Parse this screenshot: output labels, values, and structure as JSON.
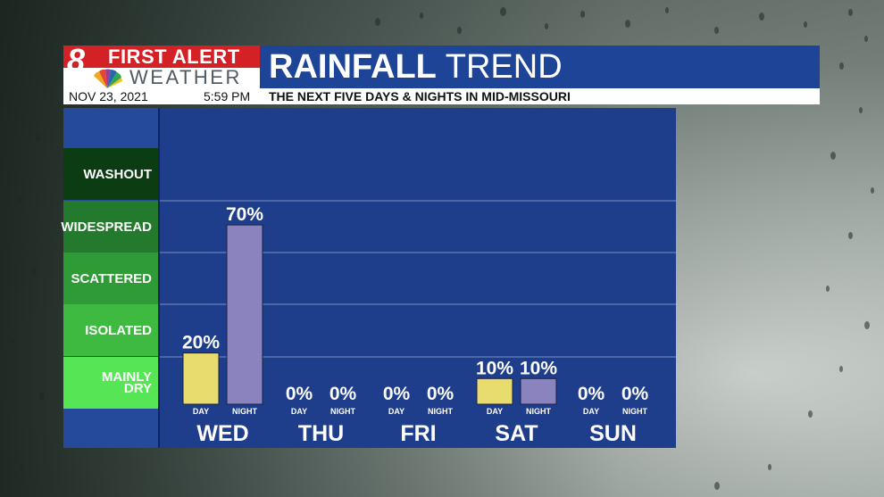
{
  "logo": {
    "line1": "FIRST ALERT",
    "line2": "WEATHER",
    "numeral": "8"
  },
  "header": {
    "title_bold": "RAINFALL",
    "title_light": "TREND",
    "date": "NOV 23, 2021",
    "time": "5:59 PM",
    "description": "THE NEXT FIVE DAYS & NIGHTS IN MID-MISSOURI"
  },
  "legend": {
    "levels": [
      {
        "label": "WASHOUT",
        "color": "#0c3d12"
      },
      {
        "label": "WIDESPREAD",
        "color": "#247a2c"
      },
      {
        "label": "SCATTERED",
        "color": "#2f9b36"
      },
      {
        "label": "ISOLATED",
        "color": "#3eba41"
      },
      {
        "label": "MAINLY\nDRY",
        "color": "#56e655"
      }
    ]
  },
  "colors": {
    "day_bar": "#e9dc6e",
    "night_bar": "#8a83bd",
    "panel": "#1e3d8a",
    "gridline": "#6a80b8"
  },
  "chart_data": {
    "type": "bar",
    "title": "RAINFALL TREND",
    "categories": [
      "WED",
      "THU",
      "FRI",
      "SAT",
      "SUN"
    ],
    "sub_labels": [
      "DAY",
      "NIGHT"
    ],
    "series": [
      {
        "name": "DAY",
        "values": [
          20,
          0,
          0,
          10,
          0
        ]
      },
      {
        "name": "NIGHT",
        "values": [
          70,
          0,
          0,
          10,
          0
        ]
      }
    ],
    "value_labels": {
      "DAY": [
        "20%",
        "0%",
        "0%",
        "10%",
        "0%"
      ],
      "NIGHT": [
        "70%",
        "0%",
        "0%",
        "10%",
        "0%"
      ]
    },
    "unit": "%",
    "ylim": [
      0,
      100
    ],
    "grid": true
  }
}
